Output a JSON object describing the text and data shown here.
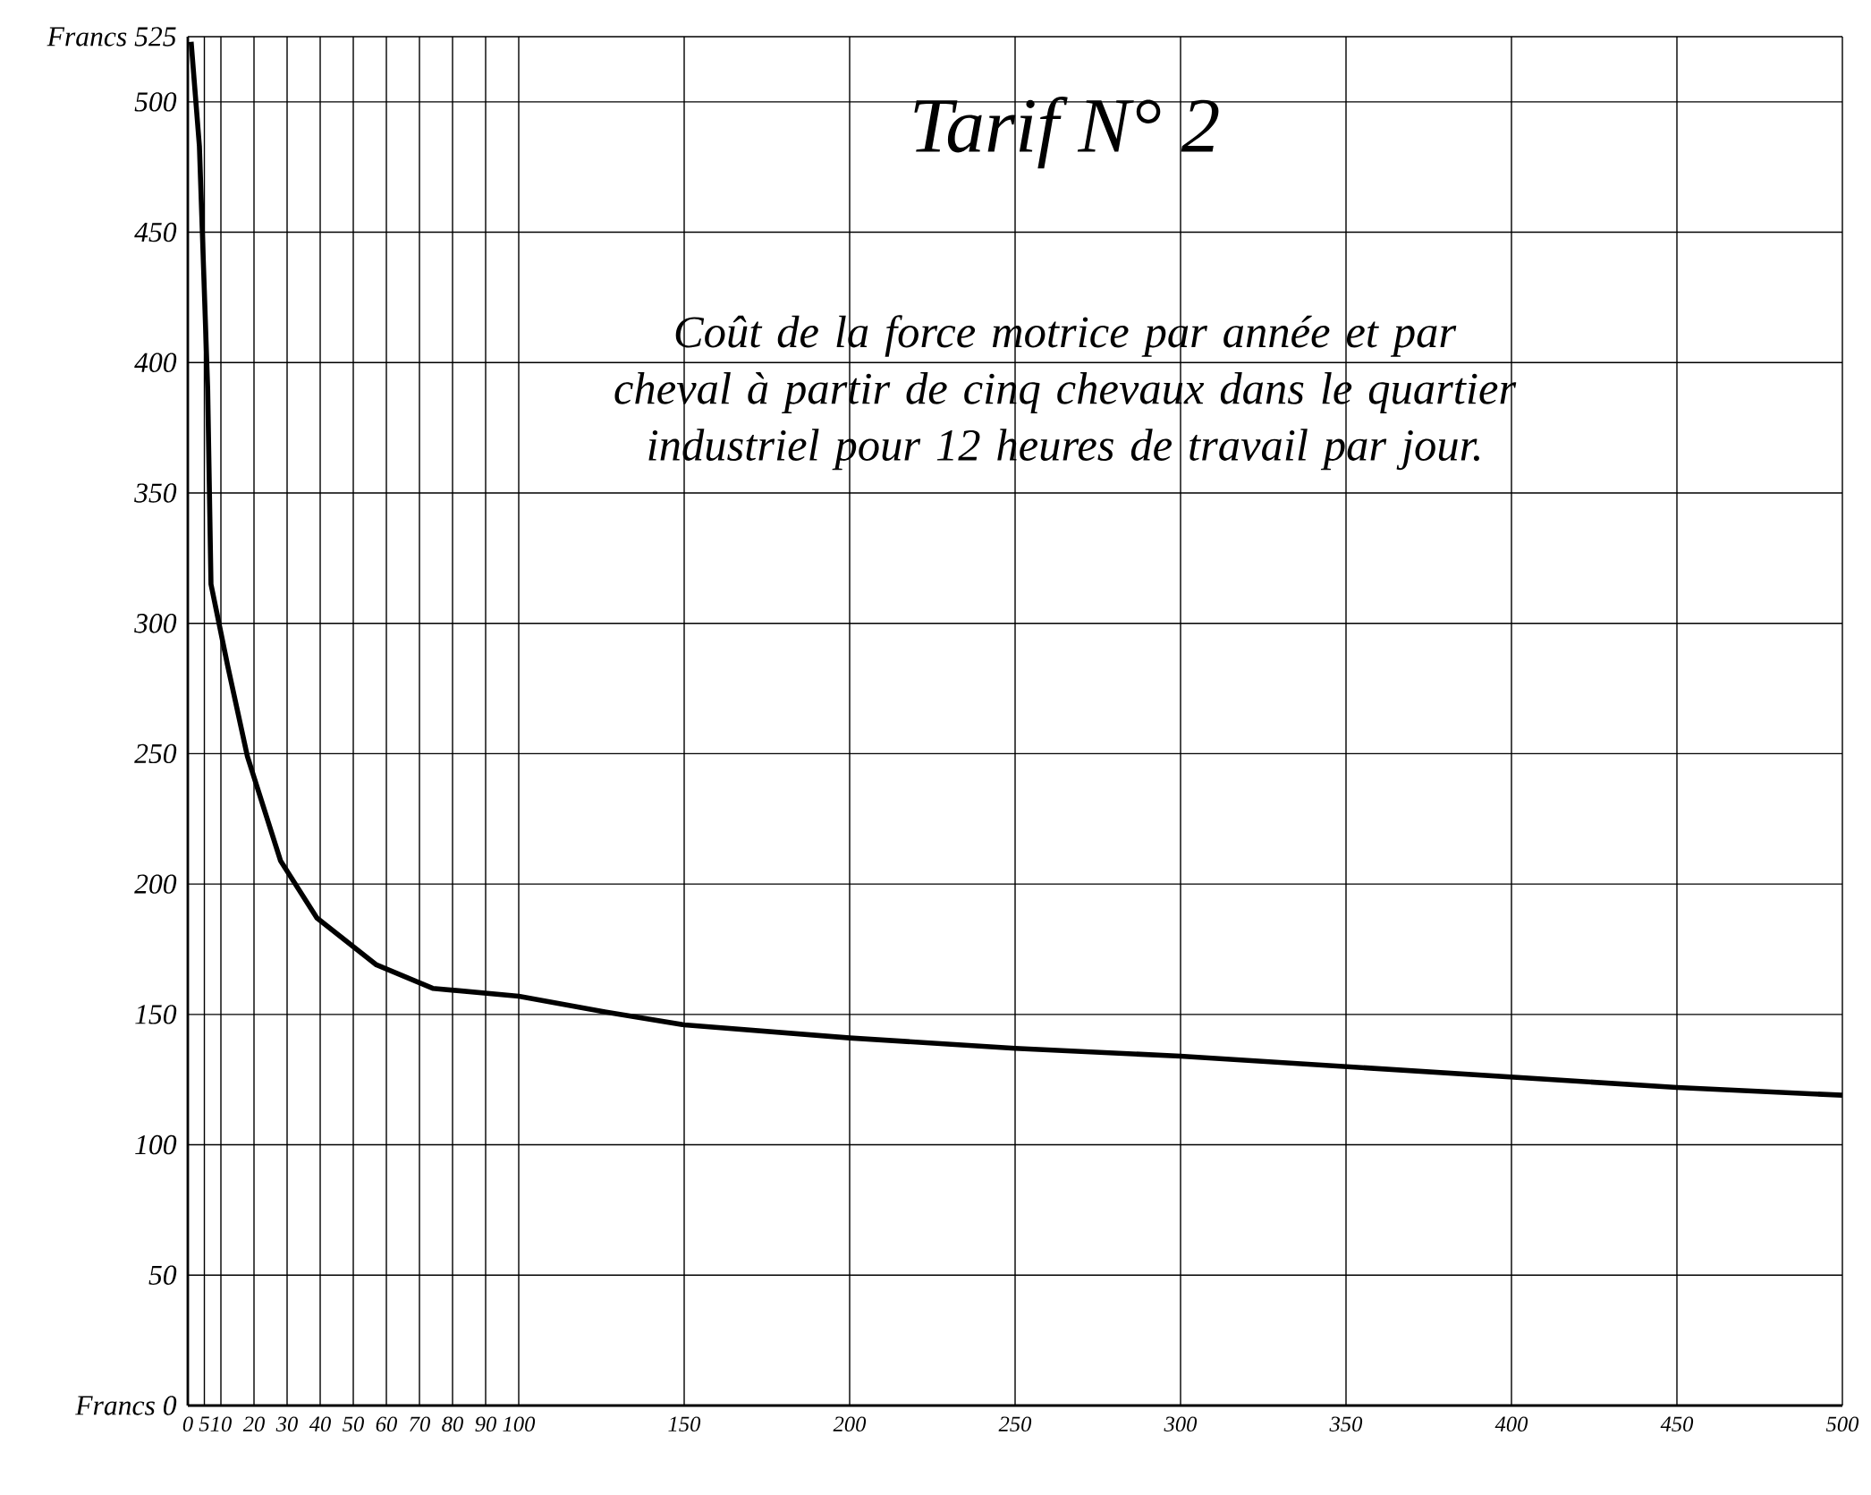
{
  "chart_data": {
    "type": "line",
    "title": "Tarif N° 2",
    "subtitle": "Coût de la force motrice par année et par cheval à partir de cinq chevaux dans le quartier industriel pour 12 heures de travail par jour.",
    "x": [
      1,
      3.5,
      6,
      7,
      12,
      18,
      28,
      39,
      57,
      74,
      100,
      126,
      150,
      200,
      250,
      300,
      350,
      400,
      450,
      500
    ],
    "series": [
      {
        "color": "#000000",
        "values": [
          523,
          483,
          390,
          315,
          284,
          249,
          209,
          187,
          169,
          160,
          157,
          151,
          146,
          141,
          137,
          134,
          130,
          126,
          122,
          119
        ]
      }
    ],
    "xlim": [
      0,
      500
    ],
    "ylim": [
      0,
      525
    ],
    "xticks": [
      0,
      5,
      10,
      20,
      30,
      40,
      50,
      60,
      70,
      80,
      90,
      100,
      150,
      200,
      250,
      300,
      350,
      400,
      450,
      500
    ],
    "yticks": [
      {
        "value": 0,
        "label": "Francs 0"
      },
      50,
      100,
      150,
      200,
      250,
      300,
      350,
      400,
      450,
      500,
      {
        "value": 525,
        "label": "Francs 525"
      }
    ],
    "grid": true,
    "marker": "none",
    "line_style": "solid"
  }
}
